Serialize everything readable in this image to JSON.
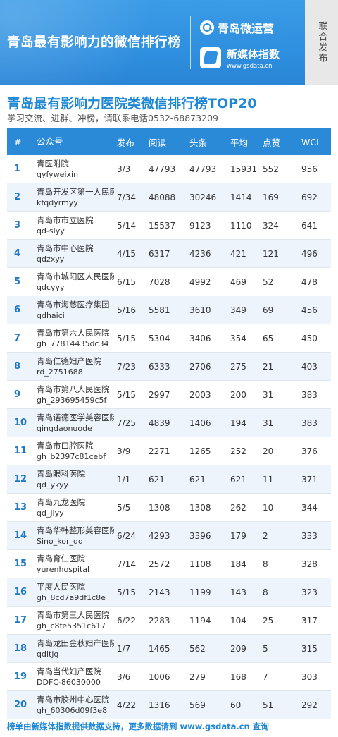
{
  "banner": {
    "title": "青岛最有影响力的微信排行榜",
    "brand1": "青岛微运营",
    "brand2_name": "新媒体指数",
    "brand2_url": "www.gsdata.cn",
    "side_tab": "联合发布"
  },
  "heading": {
    "title": "青岛最有影响力医院类微信排行榜TOP20",
    "subtitle": "学习交流、进群、冲榜，请联系电话0532-68873209"
  },
  "table": {
    "headers": {
      "rank": "#",
      "name": "公众号",
      "pub": "发布",
      "read": "阅读",
      "head": "头条",
      "avg": "平均",
      "like": "点赞",
      "wci": "WCI"
    },
    "rows": [
      {
        "rank": "1",
        "name": "青医附院",
        "id": "qyfyweixin",
        "pub": "3/3",
        "read": "47793",
        "head": "47793",
        "avg": "15931",
        "like": "552",
        "wci": "956"
      },
      {
        "rank": "2",
        "name": "青岛开发区第一人民医院",
        "id": "kfqdyrmyy",
        "pub": "7/34",
        "read": "48088",
        "head": "30246",
        "avg": "1414",
        "like": "169",
        "wci": "692"
      },
      {
        "rank": "3",
        "name": "青岛市市立医院",
        "id": "qd-slyy",
        "pub": "5/14",
        "read": "15537",
        "head": "9123",
        "avg": "1110",
        "like": "324",
        "wci": "641"
      },
      {
        "rank": "4",
        "name": "青岛市中心医院",
        "id": "qdzxyy",
        "pub": "4/15",
        "read": "6317",
        "head": "4236",
        "avg": "421",
        "like": "121",
        "wci": "496"
      },
      {
        "rank": "5",
        "name": "青岛市城阳区人民医院",
        "id": "qdcyyy",
        "pub": "6/15",
        "read": "7028",
        "head": "4992",
        "avg": "469",
        "like": "52",
        "wci": "478"
      },
      {
        "rank": "6",
        "name": "青岛市海慈医疗集团",
        "id": "qdhaici",
        "pub": "5/16",
        "read": "5581",
        "head": "3610",
        "avg": "349",
        "like": "69",
        "wci": "456"
      },
      {
        "rank": "7",
        "name": "青岛市第六人民医院",
        "id": "gh_77814435dc34",
        "pub": "5/15",
        "read": "5304",
        "head": "3406",
        "avg": "354",
        "like": "65",
        "wci": "450"
      },
      {
        "rank": "8",
        "name": "青岛仁德妇产医院",
        "id": "rd_2751688",
        "pub": "7/23",
        "read": "6333",
        "head": "2706",
        "avg": "275",
        "like": "21",
        "wci": "403"
      },
      {
        "rank": "9",
        "name": "青岛市第八人民医院",
        "id": "gh_293695459c5f",
        "pub": "5/15",
        "read": "2997",
        "head": "2003",
        "avg": "200",
        "like": "31",
        "wci": "383"
      },
      {
        "rank": "10",
        "name": "青岛诺德医学美容医院",
        "id": "qingdaonuode",
        "pub": "7/25",
        "read": "4839",
        "head": "1406",
        "avg": "194",
        "like": "31",
        "wci": "383"
      },
      {
        "rank": "11",
        "name": "青岛市口腔医院",
        "id": "gh_b2397c81cebf",
        "pub": "3/9",
        "read": "2271",
        "head": "1265",
        "avg": "252",
        "like": "20",
        "wci": "376"
      },
      {
        "rank": "12",
        "name": "青岛眼科医院",
        "id": "qd_ykyy",
        "pub": "1/1",
        "read": "621",
        "head": "621",
        "avg": "621",
        "like": "11",
        "wci": "371"
      },
      {
        "rank": "13",
        "name": "青岛九龙医院",
        "id": "qd_jlyy",
        "pub": "5/5",
        "read": "1308",
        "head": "1308",
        "avg": "262",
        "like": "10",
        "wci": "344"
      },
      {
        "rank": "14",
        "name": "青岛华韩整形美容医院",
        "id": "Sino_kor_qd",
        "pub": "6/24",
        "read": "4293",
        "head": "3396",
        "avg": "179",
        "like": "2",
        "wci": "333"
      },
      {
        "rank": "15",
        "name": "青岛育仁医院",
        "id": "yurenhospital",
        "pub": "7/14",
        "read": "2572",
        "head": "1108",
        "avg": "184",
        "like": "8",
        "wci": "328"
      },
      {
        "rank": "16",
        "name": "平度人民医院",
        "id": "gh_8cd7a9df1c8e",
        "pub": "5/15",
        "read": "2143",
        "head": "1199",
        "avg": "143",
        "like": "8",
        "wci": "323"
      },
      {
        "rank": "17",
        "name": "青岛市第三人民医院",
        "id": "gh_c8fe5351c617",
        "pub": "6/22",
        "read": "2283",
        "head": "1194",
        "avg": "104",
        "like": "25",
        "wci": "317"
      },
      {
        "rank": "18",
        "name": "青岛龙田金秋妇产医院",
        "id": "qdltjq",
        "pub": "1/7",
        "read": "1465",
        "head": "562",
        "avg": "209",
        "like": "5",
        "wci": "315"
      },
      {
        "rank": "19",
        "name": "青岛当代妇产医院",
        "id": "DDFC-86030000",
        "pub": "3/6",
        "read": "1006",
        "head": "279",
        "avg": "168",
        "like": "7",
        "wci": "303"
      },
      {
        "rank": "20",
        "name": "青岛市胶州中心医院",
        "id": "gh_60306d09f3e8",
        "pub": "4/22",
        "read": "1316",
        "head": "569",
        "avg": "60",
        "like": "51",
        "wci": "292"
      }
    ]
  },
  "footer": "榜单由新媒体指数提供数据支持，更多数据请到 www.gsdata.cn 查询",
  "colors": {
    "banner": "#2f8fe0",
    "header": "#2a8ad8",
    "title": "#1f88d4",
    "row_alt": "#eef4fb"
  }
}
